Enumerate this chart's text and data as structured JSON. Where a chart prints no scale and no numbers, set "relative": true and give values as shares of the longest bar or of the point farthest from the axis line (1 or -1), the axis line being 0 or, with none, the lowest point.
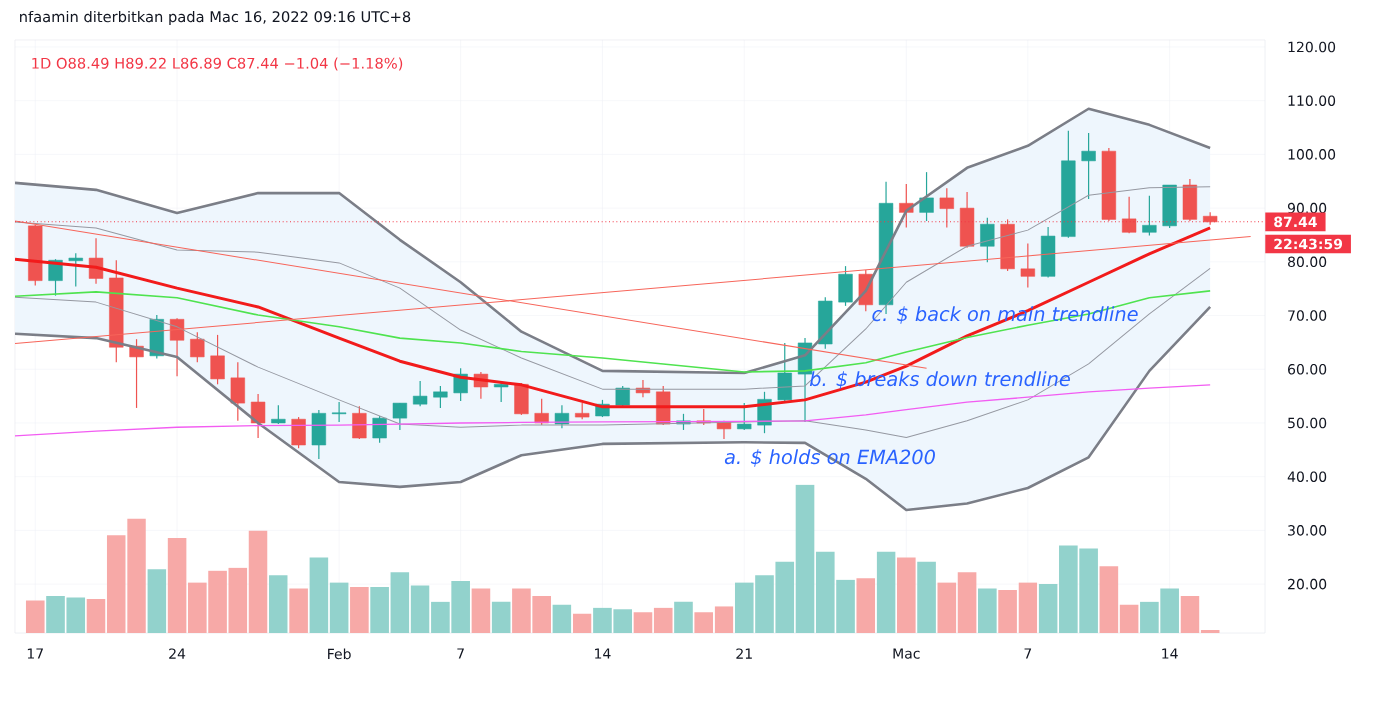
{
  "chart_data": [
    {
      "type": "candlestick",
      "title": "nfaamin diterbitkan pada Mac 16, 2022 09:16 UTC+8",
      "subtitle": "1D  O88.49  H89.22  L86.89  C87.44  −1.04 (−1.18%)",
      "x": [
        "2022-01-17",
        "2022-01-18",
        "2022-01-19",
        "2022-01-20",
        "2022-01-21",
        "2022-01-22",
        "2022-01-23",
        "2022-01-24",
        "2022-01-25",
        "2022-01-26",
        "2022-01-27",
        "2022-01-28",
        "2022-01-29",
        "2022-01-30",
        "2022-01-31",
        "2022-02-01",
        "2022-02-02",
        "2022-02-03",
        "2022-02-04",
        "2022-02-05",
        "2022-02-06",
        "2022-02-07",
        "2022-02-08",
        "2022-02-09",
        "2022-02-10",
        "2022-02-11",
        "2022-02-12",
        "2022-02-13",
        "2022-02-14",
        "2022-02-15",
        "2022-02-16",
        "2022-02-17",
        "2022-02-18",
        "2022-02-19",
        "2022-02-20",
        "2022-02-21",
        "2022-02-22",
        "2022-02-23",
        "2022-02-24",
        "2022-02-25",
        "2022-02-26",
        "2022-02-27",
        "2022-02-28",
        "2022-03-01",
        "2022-03-02",
        "2022-03-03",
        "2022-03-04",
        "2022-03-05",
        "2022-03-06",
        "2022-03-07",
        "2022-03-08",
        "2022-03-09",
        "2022-03-10",
        "2022-03-11",
        "2022-03-12",
        "2022-03-13",
        "2022-03-14",
        "2022-03-15",
        "2022-03-16"
      ],
      "ohlc": [
        [
          86.7,
          86.9,
          75.6,
          76.5
        ],
        [
          76.5,
          80.5,
          73.7,
          80.3
        ],
        [
          80.2,
          81.6,
          75.4,
          80.7
        ],
        [
          80.7,
          84.4,
          75.9,
          76.9
        ],
        [
          77.0,
          80.3,
          61.3,
          64.1
        ],
        [
          64.3,
          65.6,
          52.8,
          62.3
        ],
        [
          62.5,
          70.1,
          62.0,
          69.3
        ],
        [
          69.3,
          69.5,
          58.7,
          65.4
        ],
        [
          65.6,
          66.9,
          61.3,
          62.3
        ],
        [
          62.5,
          66.4,
          57.2,
          58.2
        ],
        [
          58.4,
          61.3,
          50.4,
          53.7
        ],
        [
          53.9,
          55.4,
          47.2,
          50.0
        ],
        [
          50.0,
          53.3,
          49.8,
          50.7
        ],
        [
          50.7,
          51.1,
          45.3,
          45.9
        ],
        [
          45.9,
          52.4,
          43.3,
          51.8
        ],
        [
          51.7,
          53.9,
          50.2,
          51.9
        ],
        [
          51.8,
          53.1,
          47.0,
          47.2
        ],
        [
          47.2,
          51.3,
          46.3,
          50.9
        ],
        [
          50.9,
          53.7,
          48.7,
          53.7
        ],
        [
          53.5,
          57.8,
          53.1,
          55.0
        ],
        [
          54.8,
          56.9,
          52.8,
          55.8
        ],
        [
          55.6,
          60.2,
          54.1,
          59.1
        ],
        [
          59.1,
          59.5,
          54.5,
          56.7
        ],
        [
          56.7,
          57.4,
          53.9,
          57.2
        ],
        [
          57.2,
          57.4,
          51.5,
          51.7
        ],
        [
          51.8,
          54.5,
          49.6,
          50.0
        ],
        [
          49.8,
          53.3,
          49.0,
          51.8
        ],
        [
          51.8,
          53.7,
          50.7,
          51.1
        ],
        [
          51.3,
          54.3,
          51.1,
          53.5
        ],
        [
          53.3,
          56.9,
          53.1,
          56.5
        ],
        [
          56.5,
          58.0,
          54.8,
          55.6
        ],
        [
          55.8,
          56.9,
          49.6,
          49.8
        ],
        [
          49.8,
          51.7,
          48.7,
          50.4
        ],
        [
          50.4,
          52.6,
          49.6,
          50.0
        ],
        [
          50.2,
          50.4,
          47.0,
          48.9
        ],
        [
          48.9,
          53.7,
          48.7,
          49.8
        ],
        [
          49.6,
          55.8,
          48.1,
          54.4
        ],
        [
          54.3,
          64.9,
          53.7,
          59.3
        ],
        [
          59.1,
          65.8,
          50.2,
          64.9
        ],
        [
          64.7,
          73.4,
          63.8,
          72.7
        ],
        [
          72.5,
          79.2,
          71.8,
          77.7
        ],
        [
          77.7,
          78.5,
          70.8,
          72.0
        ],
        [
          72.0,
          94.9,
          70.3,
          90.9
        ],
        [
          90.9,
          94.5,
          86.4,
          89.2
        ],
        [
          89.2,
          96.7,
          87.6,
          91.9
        ],
        [
          91.9,
          93.7,
          86.4,
          89.9
        ],
        [
          90.0,
          93.0,
          82.6,
          82.9
        ],
        [
          82.9,
          88.2,
          79.9,
          87.0
        ],
        [
          87.0,
          87.9,
          78.3,
          78.7
        ],
        [
          78.7,
          83.4,
          75.2,
          77.3
        ],
        [
          77.3,
          86.5,
          77.1,
          84.8
        ],
        [
          84.7,
          104.4,
          84.5,
          98.8
        ],
        [
          98.8,
          104.0,
          91.7,
          100.6
        ],
        [
          100.6,
          101.2,
          87.6,
          87.9
        ],
        [
          88.0,
          92.1,
          85.3,
          85.5
        ],
        [
          85.5,
          92.3,
          84.9,
          86.8
        ],
        [
          86.7,
          94.3,
          86.3,
          94.3
        ],
        [
          94.3,
          95.4,
          87.6,
          87.9
        ],
        [
          88.49,
          89.22,
          86.89,
          87.44
        ]
      ],
      "series": [
        {
          "type": "line",
          "color": "#f21b1b",
          "x": [
            "2022-01-16",
            "2022-01-20",
            "2022-01-24",
            "2022-01-28",
            "2022-02-01",
            "2022-02-04",
            "2022-02-07",
            "2022-02-10",
            "2022-02-14",
            "2022-02-21",
            "2022-02-24",
            "2022-02-27",
            "2022-03-01",
            "2022-03-04",
            "2022-03-07",
            "2022-03-10",
            "2022-03-13",
            "2022-03-16"
          ],
          "values": [
            80.5,
            79.0,
            75.1,
            71.6,
            65.8,
            61.5,
            58.5,
            57.1,
            53.0,
            53.0,
            54.3,
            57.6,
            60.6,
            66.2,
            70.9,
            76.2,
            81.5,
            86.3
          ],
          "lower": [
            66.6,
            65.8,
            62.3,
            50.0,
            39.0,
            38.1,
            39.0,
            44.0,
            46.1,
            46.4,
            46.3,
            39.6,
            33.8,
            35.0,
            37.9,
            43.6,
            59.7,
            71.6
          ],
          "upper": [
            94.7,
            93.4,
            89.1,
            92.8,
            92.8,
            84.1,
            76.2,
            67.0,
            59.7,
            59.3,
            62.6,
            74.6,
            89.5,
            97.5,
            101.6,
            108.5,
            105.5,
            101.2
          ]
        },
        {
          "type": "line",
          "color": "#7b7e87",
          "x": [
            "2022-01-16",
            "2022-01-20",
            "2022-01-24",
            "2022-01-28",
            "2022-02-01",
            "2022-02-04",
            "2022-02-07",
            "2022-02-10",
            "2022-02-14",
            "2022-02-21",
            "2022-02-24",
            "2022-02-27",
            "2022-03-01",
            "2022-03-04",
            "2022-03-07",
            "2022-03-10",
            "2022-03-13",
            "2022-03-16"
          ],
          "values": [
            94.7,
            93.4,
            89.1,
            92.8,
            92.8,
            84.1,
            76.2,
            67.0,
            59.7,
            59.3,
            62.6,
            74.6,
            89.5,
            97.5,
            101.6,
            108.5,
            105.5,
            101.2
          ]
        },
        {
          "type": "line",
          "color": "#7b7e87",
          "x": [
            "2022-01-16",
            "2022-01-20",
            "2022-01-24",
            "2022-01-28",
            "2022-02-01",
            "2022-02-04",
            "2022-02-07",
            "2022-02-10",
            "2022-02-14",
            "2022-02-21",
            "2022-02-24",
            "2022-02-27",
            "2022-03-01",
            "2022-03-04",
            "2022-03-07",
            "2022-03-10",
            "2022-03-13",
            "2022-03-16"
          ],
          "values": [
            66.6,
            65.8,
            62.3,
            50.0,
            39.0,
            38.1,
            39.0,
            44.0,
            46.1,
            46.4,
            46.3,
            39.6,
            33.8,
            35.0,
            37.9,
            43.6,
            59.7,
            71.6
          ]
        },
        {
          "type": "line",
          "color": "#9598a1",
          "x": [
            "2022-01-16",
            "2022-01-20",
            "2022-01-24",
            "2022-01-28",
            "2022-02-01",
            "2022-02-04",
            "2022-02-07",
            "2022-02-10",
            "2022-02-14",
            "2022-02-21",
            "2022-02-24",
            "2022-02-27",
            "2022-03-01",
            "2022-03-04",
            "2022-03-07",
            "2022-03-10",
            "2022-03-13",
            "2022-03-16"
          ],
          "values": [
            87.4,
            86.3,
            82.2,
            81.8,
            79.8,
            75.1,
            67.3,
            62.1,
            56.3,
            56.3,
            56.9,
            67.5,
            76.2,
            82.9,
            85.9,
            92.4,
            93.8,
            94.0
          ]
        },
        {
          "type": "line",
          "color": "#9598a1",
          "x": [
            "2022-01-16",
            "2022-01-20",
            "2022-01-24",
            "2022-01-28",
            "2022-02-01",
            "2022-02-04",
            "2022-02-07",
            "2022-02-10",
            "2022-02-14",
            "2022-02-21",
            "2022-02-24",
            "2022-02-27",
            "2022-03-01",
            "2022-03-04",
            "2022-03-07",
            "2022-03-10",
            "2022-03-13",
            "2022-03-16"
          ],
          "values": [
            73.4,
            72.5,
            67.9,
            60.4,
            54.3,
            49.8,
            49.2,
            49.6,
            49.6,
            50.2,
            50.4,
            48.7,
            47.3,
            50.4,
            54.3,
            61.0,
            70.3,
            78.8
          ]
        },
        {
          "type": "line",
          "color": "#4fe34f",
          "x": [
            "2022-01-16",
            "2022-01-20",
            "2022-01-24",
            "2022-01-28",
            "2022-02-01",
            "2022-02-04",
            "2022-02-07",
            "2022-02-10",
            "2022-02-14",
            "2022-02-21",
            "2022-02-24",
            "2022-02-27",
            "2022-03-01",
            "2022-03-04",
            "2022-03-07",
            "2022-03-10",
            "2022-03-13",
            "2022-03-16"
          ],
          "values": [
            73.6,
            74.4,
            73.3,
            70.1,
            67.9,
            65.8,
            64.9,
            63.3,
            62.1,
            59.5,
            59.7,
            61.2,
            63.2,
            65.9,
            68.2,
            70.3,
            73.3,
            74.6
          ]
        },
        {
          "type": "line",
          "color": "#f25cf2",
          "x": [
            "2022-01-16",
            "2022-01-20",
            "2022-01-24",
            "2022-01-28",
            "2022-02-01",
            "2022-02-04",
            "2022-02-07",
            "2022-02-10",
            "2022-02-14",
            "2022-02-21",
            "2022-02-24",
            "2022-02-27",
            "2022-03-01",
            "2022-03-04",
            "2022-03-07",
            "2022-03-10",
            "2022-03-13",
            "2022-03-16"
          ],
          "values": [
            47.6,
            48.5,
            49.2,
            49.5,
            49.6,
            49.8,
            50.0,
            50.1,
            50.2,
            50.3,
            50.4,
            51.5,
            52.5,
            53.9,
            54.8,
            55.8,
            56.5,
            57.1
          ]
        },
        {
          "type": "line",
          "color": "#f7655a",
          "x": [
            "2022-01-16",
            "2022-03-02"
          ],
          "values": [
            87.6,
            60.2
          ]
        },
        {
          "type": "line",
          "color": "#f7655a",
          "x": [
            "2022-01-16",
            "2022-03-18"
          ],
          "values": [
            64.8,
            84.7
          ]
        }
      ],
      "xlim": [
        "2022-01-16",
        "2022-03-18T17:00"
      ],
      "xticks": [
        {
          "value": "2022-01-17",
          "label": "17"
        },
        {
          "value": "2022-01-24",
          "label": "24"
        },
        {
          "value": "2022-02-01",
          "label": "Feb"
        },
        {
          "value": "2022-02-07",
          "label": "7"
        },
        {
          "value": "2022-02-14",
          "label": "14"
        },
        {
          "value": "2022-02-21",
          "label": "21"
        },
        {
          "value": "2022-03-01",
          "label": "Mac"
        },
        {
          "value": "2022-03-07",
          "label": "7"
        },
        {
          "value": "2022-03-14",
          "label": "14"
        }
      ],
      "ylim": [
        10.9,
        121.3
      ],
      "yticks": [
        {
          "value": 20,
          "label": "20.00"
        },
        {
          "value": 30,
          "label": "30.00"
        },
        {
          "value": 40,
          "label": "40.00"
        },
        {
          "value": 50,
          "label": "50.00"
        },
        {
          "value": 60,
          "label": "60.00"
        },
        {
          "value": 70,
          "label": "70.00"
        },
        {
          "value": 80,
          "label": "80.00"
        },
        {
          "value": 90,
          "label": "90.00"
        },
        {
          "value": 100,
          "label": "100.00"
        },
        {
          "value": 110,
          "label": "110.00"
        },
        {
          "value": 120,
          "label": "120.00"
        }
      ],
      "grid": true,
      "ref_lines": [
        {
          "axis": "y",
          "value": 87.44,
          "label": "87.44",
          "color": "#f23645",
          "line_style": "dotted"
        }
      ],
      "annotations": [
        "22:43:59",
        "a. $ holds on EMA200",
        "b. $ breaks down trendline",
        "c. $ back on main trendline"
      ]
    },
    {
      "type": "bar",
      "relative": true,
      "x": [
        "2022-01-17",
        "2022-01-18",
        "2022-01-19",
        "2022-01-20",
        "2022-01-21",
        "2022-01-22",
        "2022-01-23",
        "2022-01-24",
        "2022-01-25",
        "2022-01-26",
        "2022-01-27",
        "2022-01-28",
        "2022-01-29",
        "2022-01-30",
        "2022-01-31",
        "2022-02-01",
        "2022-02-02",
        "2022-02-03",
        "2022-02-04",
        "2022-02-05",
        "2022-02-06",
        "2022-02-07",
        "2022-02-08",
        "2022-02-09",
        "2022-02-10",
        "2022-02-11",
        "2022-02-12",
        "2022-02-13",
        "2022-02-14",
        "2022-02-15",
        "2022-02-16",
        "2022-02-17",
        "2022-02-18",
        "2022-02-19",
        "2022-02-20",
        "2022-02-21",
        "2022-02-22",
        "2022-02-23",
        "2022-02-24",
        "2022-02-25",
        "2022-02-26",
        "2022-02-27",
        "2022-02-28",
        "2022-03-01",
        "2022-03-02",
        "2022-03-03",
        "2022-03-04",
        "2022-03-05",
        "2022-03-06",
        "2022-03-07",
        "2022-03-08",
        "2022-03-09",
        "2022-03-10",
        "2022-03-11",
        "2022-03-12",
        "2022-03-13",
        "2022-03-14",
        "2022-03-15",
        "2022-03-16"
      ],
      "values": [
        0.22,
        0.25,
        0.24,
        0.23,
        0.66,
        0.77,
        0.43,
        0.64,
        0.34,
        0.42,
        0.44,
        0.69,
        0.39,
        0.3,
        0.51,
        0.34,
        0.31,
        0.31,
        0.41,
        0.32,
        0.21,
        0.35,
        0.3,
        0.21,
        0.3,
        0.25,
        0.19,
        0.13,
        0.17,
        0.16,
        0.14,
        0.17,
        0.21,
        0.14,
        0.18,
        0.34,
        0.39,
        0.48,
        1,
        0.55,
        0.36,
        0.37,
        0.55,
        0.51,
        0.48,
        0.34,
        0.41,
        0.3,
        0.29,
        0.34,
        0.33,
        0.59,
        0.57,
        0.45,
        0.19,
        0.21,
        0.3,
        0.25,
        0.02
      ],
      "colors": [
        "#f7a9a7",
        "#92d2cc",
        "#92d2cc",
        "#f7a9a7",
        "#f7a9a7",
        "#f7a9a7",
        "#92d2cc",
        "#f7a9a7",
        "#f7a9a7",
        "#f7a9a7",
        "#f7a9a7",
        "#f7a9a7",
        "#92d2cc",
        "#f7a9a7",
        "#92d2cc",
        "#92d2cc",
        "#f7a9a7",
        "#92d2cc",
        "#92d2cc",
        "#92d2cc",
        "#92d2cc",
        "#92d2cc",
        "#f7a9a7",
        "#92d2cc",
        "#f7a9a7",
        "#f7a9a7",
        "#92d2cc",
        "#f7a9a7",
        "#92d2cc",
        "#92d2cc",
        "#f7a9a7",
        "#f7a9a7",
        "#92d2cc",
        "#f7a9a7",
        "#f7a9a7",
        "#92d2cc",
        "#92d2cc",
        "#92d2cc",
        "#92d2cc",
        "#92d2cc",
        "#92d2cc",
        "#f7a9a7",
        "#92d2cc",
        "#f7a9a7",
        "#92d2cc",
        "#f7a9a7",
        "#f7a9a7",
        "#92d2cc",
        "#f7a9a7",
        "#f7a9a7",
        "#92d2cc",
        "#92d2cc",
        "#92d2cc",
        "#f7a9a7",
        "#f7a9a7",
        "#92d2cc",
        "#92d2cc",
        "#f7a9a7",
        "#f7a9a7"
      ],
      "xlim": [
        "2022-01-16",
        "2022-03-18T17:00"
      ]
    }
  ]
}
